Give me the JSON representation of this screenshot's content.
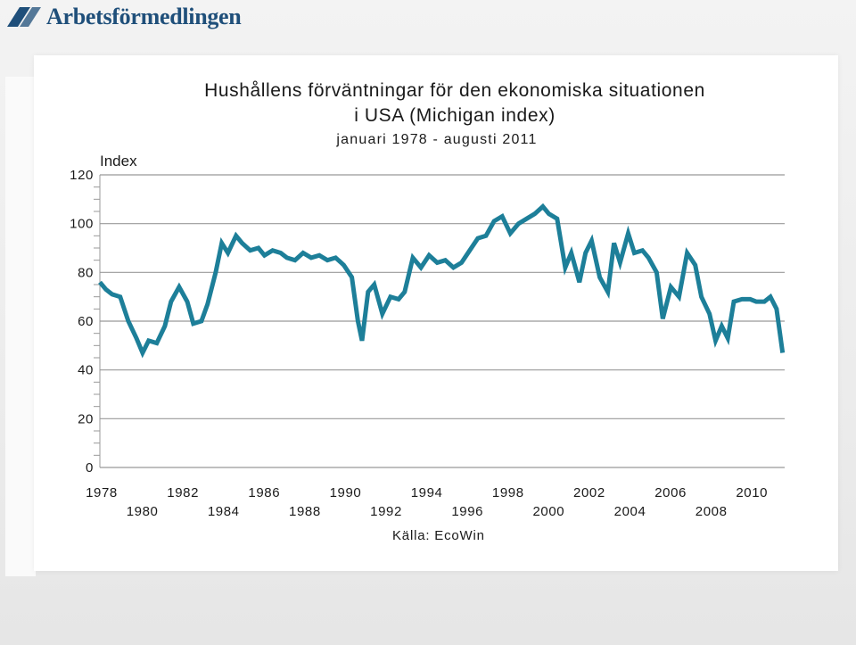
{
  "header": {
    "logo_text": "Arbetsförmedlingen",
    "logo_icon": "arbetsformedlingen-logo-icon"
  },
  "colors": {
    "series": "#1d7f99",
    "axis": "#999999",
    "logo": "#1f4f7a"
  },
  "chart_data": {
    "type": "line",
    "title": "Hushållens förväntningar för den ekonomiska situationen",
    "title_line2": "i USA (Michigan index)",
    "subtitle": "januari 1978 - augusti 2011",
    "ylabel": "Index",
    "xlabel": "",
    "source": "Källa: EcoWin",
    "ylim": [
      0,
      120
    ],
    "xlim": [
      1978,
      2011.7
    ],
    "grid": true,
    "y_ticks": [
      "0",
      "20",
      "40",
      "60",
      "80",
      "100",
      "120"
    ],
    "y_tick_values": [
      0,
      20,
      40,
      60,
      80,
      100,
      120
    ],
    "x_ticks_upper": [
      "1978",
      "1982",
      "1986",
      "1990",
      "1994",
      "1998",
      "2002",
      "2006",
      "2010"
    ],
    "x_ticks_lower": [
      "1980",
      "1984",
      "1988",
      "1992",
      "1996",
      "2000",
      "2004",
      "2008"
    ],
    "series": [
      {
        "x": [
          1978.0,
          1978.3,
          1978.6,
          1979.0,
          1979.4,
          1979.8,
          1980.1,
          1980.4,
          1980.8,
          1981.2,
          1981.5,
          1981.9,
          1982.3,
          1982.6,
          1983.0,
          1983.3,
          1983.7,
          1984.0,
          1984.3,
          1984.7,
          1985.0,
          1985.4,
          1985.8,
          1986.1,
          1986.5,
          1986.9,
          1987.2,
          1987.6,
          1988.0,
          1988.4,
          1988.8,
          1989.2,
          1989.6,
          1990.0,
          1990.4,
          1990.7,
          1990.9,
          1991.2,
          1991.5,
          1991.9,
          1992.3,
          1992.7,
          1993.0,
          1993.4,
          1993.8,
          1994.2,
          1994.6,
          1995.0,
          1995.4,
          1995.8,
          1996.2,
          1996.6,
          1997.0,
          1997.4,
          1997.8,
          1998.2,
          1998.6,
          1999.0,
          1999.4,
          1999.8,
          2000.1,
          2000.5,
          2000.9,
          2001.2,
          2001.6,
          2001.9,
          2002.2,
          2002.6,
          2003.0,
          2003.3,
          2003.6,
          2004.0,
          2004.3,
          2004.7,
          2005.0,
          2005.4,
          2005.7,
          2006.1,
          2006.5,
          2006.9,
          2007.3,
          2007.6,
          2008.0,
          2008.3,
          2008.6,
          2008.9,
          2009.2,
          2009.6,
          2010.0,
          2010.3,
          2010.7,
          2011.0,
          2011.3,
          2011.6
        ],
        "values": [
          76,
          73,
          71,
          70,
          60,
          53,
          47,
          52,
          51,
          58,
          68,
          74,
          68,
          59,
          60,
          67,
          80,
          92,
          88,
          95,
          92,
          89,
          90,
          87,
          89,
          88,
          86,
          85,
          88,
          86,
          87,
          85,
          86,
          83,
          78,
          60,
          52,
          72,
          75,
          63,
          70,
          69,
          72,
          86,
          82,
          87,
          84,
          85,
          82,
          84,
          89,
          94,
          95,
          101,
          103,
          96,
          100,
          102,
          104,
          107,
          104,
          102,
          82,
          88,
          76,
          88,
          93,
          78,
          72,
          92,
          84,
          96,
          88,
          89,
          86,
          80,
          61,
          74,
          70,
          88,
          83,
          70,
          63,
          52,
          58,
          53,
          68,
          69,
          69,
          68,
          68,
          70,
          65,
          47
        ]
      }
    ]
  }
}
